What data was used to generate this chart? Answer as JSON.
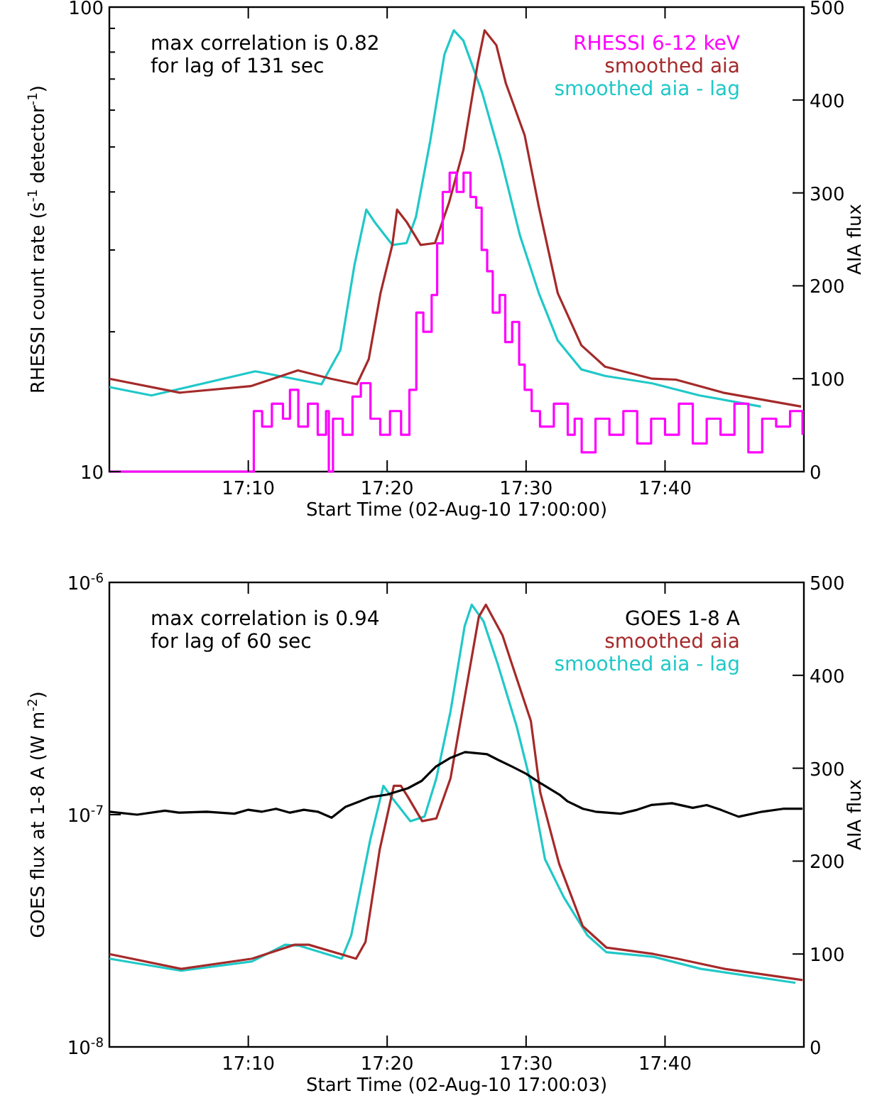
{
  "chart_data": [
    {
      "type": "line",
      "xlabel": "Start Time (02-Aug-10 17:00:00)",
      "ylabel": "RHESSI count rate (s$^{-1}$ detector$^{-1}$)",
      "y2label": "AIA flux",
      "log": "y",
      "legend": "top right",
      "annotations": [
        "max correlation is 0.82",
        "for lag of 131 sec"
      ],
      "xlim": [
        17,
        17.8333
      ],
      "xticks": [
        {
          "value": 17.1667,
          "label": "17:10"
        },
        {
          "value": 17.3333,
          "label": "17:20"
        },
        {
          "value": 17.5,
          "label": "17:30"
        },
        {
          "value": 17.6667,
          "label": "17:40"
        }
      ],
      "ylim": [
        10,
        100
      ],
      "yticks": [
        10,
        {
          "value": 20,
          "label": null
        },
        {
          "value": 30,
          "label": null
        },
        {
          "value": 40,
          "label": null
        },
        {
          "value": 50,
          "label": null
        },
        {
          "value": 60,
          "label": null
        },
        {
          "value": 70,
          "label": null
        },
        {
          "value": 80,
          "label": null
        },
        {
          "value": 90,
          "label": null
        },
        100
      ],
      "y2lim": [
        0,
        500
      ],
      "y2ticks": [
        0,
        100,
        200,
        300,
        400,
        500
      ],
      "series": [
        {
          "name": "RHESSI 6-12 keV",
          "type": "step",
          "color": "#ff00ff",
          "x": [
            17,
            17.17,
            17.1733,
            17.1833,
            17.195,
            17.2083,
            17.2167,
            17.2267,
            17.2383,
            17.25,
            17.26,
            17.2633,
            17.2683,
            17.28,
            17.2917,
            17.3017,
            17.3133,
            17.325,
            17.3367,
            17.35,
            17.36,
            17.3683,
            17.3767,
            17.3867,
            17.3933,
            17.4,
            17.4083,
            17.4167,
            17.425,
            17.4333,
            17.44,
            17.4467,
            17.4533,
            17.46,
            17.4683,
            17.475,
            17.4833,
            17.4917,
            17.4983,
            17.5067,
            17.5167,
            17.5333,
            17.55,
            17.5583,
            17.5667,
            17.5833,
            17.6,
            17.6167,
            17.6333,
            17.65,
            17.6667,
            17.6833,
            17.7,
            17.7167,
            17.7333,
            17.75,
            17.7667,
            17.7833,
            17.8,
            17.8167,
            17.8317
          ],
          "values": [
            10,
            10,
            13.5,
            12.5,
            14,
            13,
            15,
            12.5,
            14,
            12,
            13.5,
            10,
            13,
            12,
            14.5,
            15.5,
            13,
            12,
            13.5,
            12,
            15,
            22,
            20,
            24,
            31,
            40,
            44,
            40,
            44,
            39,
            37,
            30,
            27,
            22,
            24,
            19,
            21,
            17,
            15,
            13.5,
            12.5,
            14,
            12,
            13,
            11,
            13,
            12,
            13.5,
            11.5,
            13,
            12,
            14,
            11.5,
            13,
            12,
            14,
            11,
            13,
            12.5,
            13.5,
            12
          ]
        },
        {
          "name": "smoothed aia",
          "type": "line",
          "axis": "y2",
          "color": "#a52a2a",
          "x": [
            17,
            17.0845,
            17.1695,
            17.2262,
            17.2658,
            17.297,
            17.3112,
            17.3253,
            17.3395,
            17.3452,
            17.3565,
            17.3735,
            17.3907,
            17.4077,
            17.4247,
            17.4417,
            17.4502,
            17.4643,
            17.4757,
            17.4983,
            17.5153,
            17.538,
            17.5663,
            17.5947,
            17.6513,
            17.6797,
            17.7363,
            17.83
          ],
          "values": [
            100,
            85,
            92,
            109,
            100,
            94,
            121,
            192,
            244,
            282,
            269,
            244,
            246,
            290,
            346,
            438,
            475,
            459,
            418,
            362,
            285,
            192,
            136,
            113,
            100,
            99,
            85,
            70
          ]
        },
        {
          "name": "smoothed aia - lag",
          "type": "line",
          "axis": "y2",
          "color": "#20c8c8",
          "x": [
            17,
            17.0505,
            17.1752,
            17.2545,
            17.2772,
            17.2942,
            17.3083,
            17.318,
            17.3395,
            17.3565,
            17.3678,
            17.385,
            17.402,
            17.4133,
            17.4247,
            17.4473,
            17.47,
            17.4927,
            17.5153,
            17.538,
            17.5663,
            17.5947,
            17.6513,
            17.708,
            17.7817
          ],
          "values": [
            91,
            82,
            108,
            94,
            131,
            223,
            282,
            269,
            244,
            246,
            274,
            356,
            449,
            475,
            464,
            408,
            336,
            254,
            192,
            141,
            110,
            103,
            95,
            82,
            70
          ]
        }
      ]
    },
    {
      "type": "line",
      "xlabel": "Start Time (02-Aug-10 17:00:03)",
      "ylabel": "GOES flux at 1-8 A (W m$^{-2}$)",
      "y2label": "AIA flux",
      "log": "y",
      "legend": "top right",
      "annotations": [
        "max correlation is 0.94",
        "for lag of 60 sec"
      ],
      "xlim": [
        17,
        17.8333
      ],
      "xticks": [
        {
          "value": 17.1667,
          "label": "17:10"
        },
        {
          "value": 17.3333,
          "label": "17:20"
        },
        {
          "value": 17.5,
          "label": "17:30"
        },
        {
          "value": 17.6667,
          "label": "17:40"
        }
      ],
      "ylim": [
        1e-08,
        1e-06
      ],
      "yticks": [
        {
          "value": 1e-08,
          "label": "10$^{-8}$"
        },
        {
          "value": 1e-07,
          "label": "10$^{-7}$"
        },
        {
          "value": 1e-06,
          "label": "10$^{-6}$"
        }
      ],
      "y2lim": [
        0,
        500
      ],
      "y2ticks": [
        0,
        100,
        200,
        300,
        400,
        500
      ],
      "series": [
        {
          "name": "GOES 1-8 A",
          "type": "line",
          "color": "#000000",
          "x": [
            17,
            17.0333,
            17.0667,
            17.0833,
            17.1167,
            17.15,
            17.1667,
            17.1833,
            17.2,
            17.2167,
            17.2333,
            17.25,
            17.2667,
            17.2833,
            17.3,
            17.3133,
            17.3333,
            17.3583,
            17.375,
            17.3917,
            17.4083,
            17.4267,
            17.4533,
            17.4667,
            17.4833,
            17.5,
            17.5167,
            17.54,
            17.55,
            17.5683,
            17.5833,
            17.6133,
            17.6333,
            17.65,
            17.675,
            17.7,
            17.7167,
            17.7333,
            17.755,
            17.7833,
            17.8083,
            17.8317
          ],
          "values": [
            1.03e-07,
            1e-07,
            1.04e-07,
            1.02e-07,
            1.03e-07,
            1.01e-07,
            1.05e-07,
            1.03e-07,
            1.06e-07,
            1.02e-07,
            1.05e-07,
            1.03e-07,
            9.7e-08,
            1.08e-07,
            1.14e-07,
            1.19e-07,
            1.22e-07,
            1.3e-07,
            1.4e-07,
            1.61e-07,
            1.75e-07,
            1.86e-07,
            1.82e-07,
            1.72e-07,
            1.61e-07,
            1.5e-07,
            1.37e-07,
            1.22e-07,
            1.14e-07,
            1.06e-07,
            1.03e-07,
            1.01e-07,
            1.05e-07,
            1.1e-07,
            1.12e-07,
            1.07e-07,
            1.1e-07,
            1.05e-07,
            9.8e-08,
            1.03e-07,
            1.06e-07,
            1.06e-07
          ]
        },
        {
          "name": "smoothed aia",
          "type": "line",
          "axis": "y2",
          "color": "#a52a2a",
          "x": [
            17,
            17.0862,
            17.1712,
            17.2222,
            17.2392,
            17.296,
            17.3073,
            17.3243,
            17.3413,
            17.3498,
            17.3583,
            17.3753,
            17.3923,
            17.4093,
            17.4263,
            17.4433,
            17.4518,
            17.4717,
            17.483,
            17.5057,
            17.517,
            17.5397,
            17.568,
            17.5963,
            17.653,
            17.6813,
            17.7382,
            17.8317
          ],
          "values": [
            100,
            84,
            95,
            110,
            110,
            95,
            113,
            212,
            281,
            281,
            269,
            243,
            246,
            289,
            376,
            463,
            476,
            443,
            412,
            351,
            274,
            197,
            130,
            107,
            100,
            95,
            84,
            72
          ]
        },
        {
          "name": "smoothed aia - lag",
          "type": "line",
          "axis": "y2",
          "color": "#20c8c8",
          "x": [
            17,
            17.0862,
            17.1712,
            17.2108,
            17.2278,
            17.2788,
            17.2902,
            17.313,
            17.3288,
            17.3385,
            17.3612,
            17.3782,
            17.3923,
            17.4093,
            17.4263,
            17.4348,
            17.449,
            17.466,
            17.4887,
            17.5057,
            17.5227,
            17.5453,
            17.5737,
            17.5963,
            17.653,
            17.7098,
            17.8232
          ],
          "values": [
            95,
            82,
            92,
            110,
            109,
            95,
            120,
            223,
            281,
            269,
            243,
            248,
            289,
            361,
            453,
            476,
            458,
            412,
            345,
            284,
            202,
            161,
            120,
            102,
            97,
            84,
            69
          ]
        }
      ]
    }
  ]
}
